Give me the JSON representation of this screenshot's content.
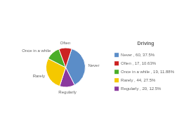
{
  "chart_data": {
    "type": "pie",
    "title": "Driving",
    "categories": [
      "Never",
      "Regularly",
      "Rarely",
      "Once in a while",
      "Often"
    ],
    "values": [
      60,
      20,
      44,
      19,
      17
    ],
    "colors": [
      "#5B8DC8",
      "#8B3A9E",
      "#F5C800",
      "#4AAE2A",
      "#CC2222"
    ],
    "legend": "right",
    "legend_entries": [
      {
        "label": "Never , 60, 37.5%",
        "color": "#5B8DC8"
      },
      {
        "label": "Often , 17, 10.63%",
        "color": "#CC2222"
      },
      {
        "label": "Once in a while , 19, 11.88%",
        "color": "#4AAE2A"
      },
      {
        "label": "Rarely , 44, 27.5%",
        "color": "#F5C800"
      },
      {
        "label": "Regularly , 20, 12.5%",
        "color": "#8B3A9E"
      }
    ]
  }
}
